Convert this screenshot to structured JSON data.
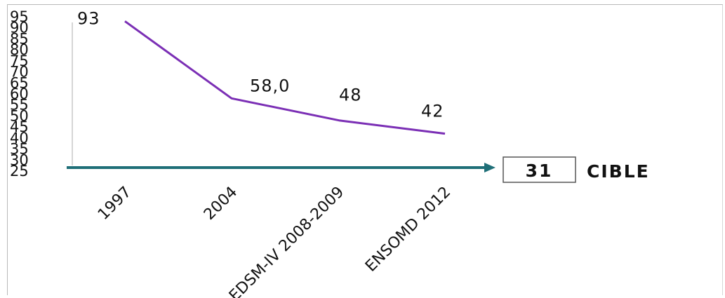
{
  "chart_data": {
    "type": "line",
    "categories": [
      "1997",
      "2004",
      "EDSM-IV 2008-2009",
      "ENSOMD  2012"
    ],
    "series": [
      {
        "values": [
          93,
          58.0,
          48,
          42
        ],
        "color": "#7b2fb5"
      }
    ],
    "data_labels": [
      "93",
      "58,0",
      "48",
      "42"
    ],
    "y_ticks": [
      "25",
      "30",
      "35",
      "40",
      "45",
      "50",
      "55",
      "60",
      "65",
      "70",
      "75",
      "80",
      "85",
      "90",
      "95"
    ],
    "ylim": [
      25,
      95
    ],
    "target": {
      "value": "31",
      "label": "CIBLE",
      "arrow_color": "#1f6f78"
    },
    "grid": false
  }
}
